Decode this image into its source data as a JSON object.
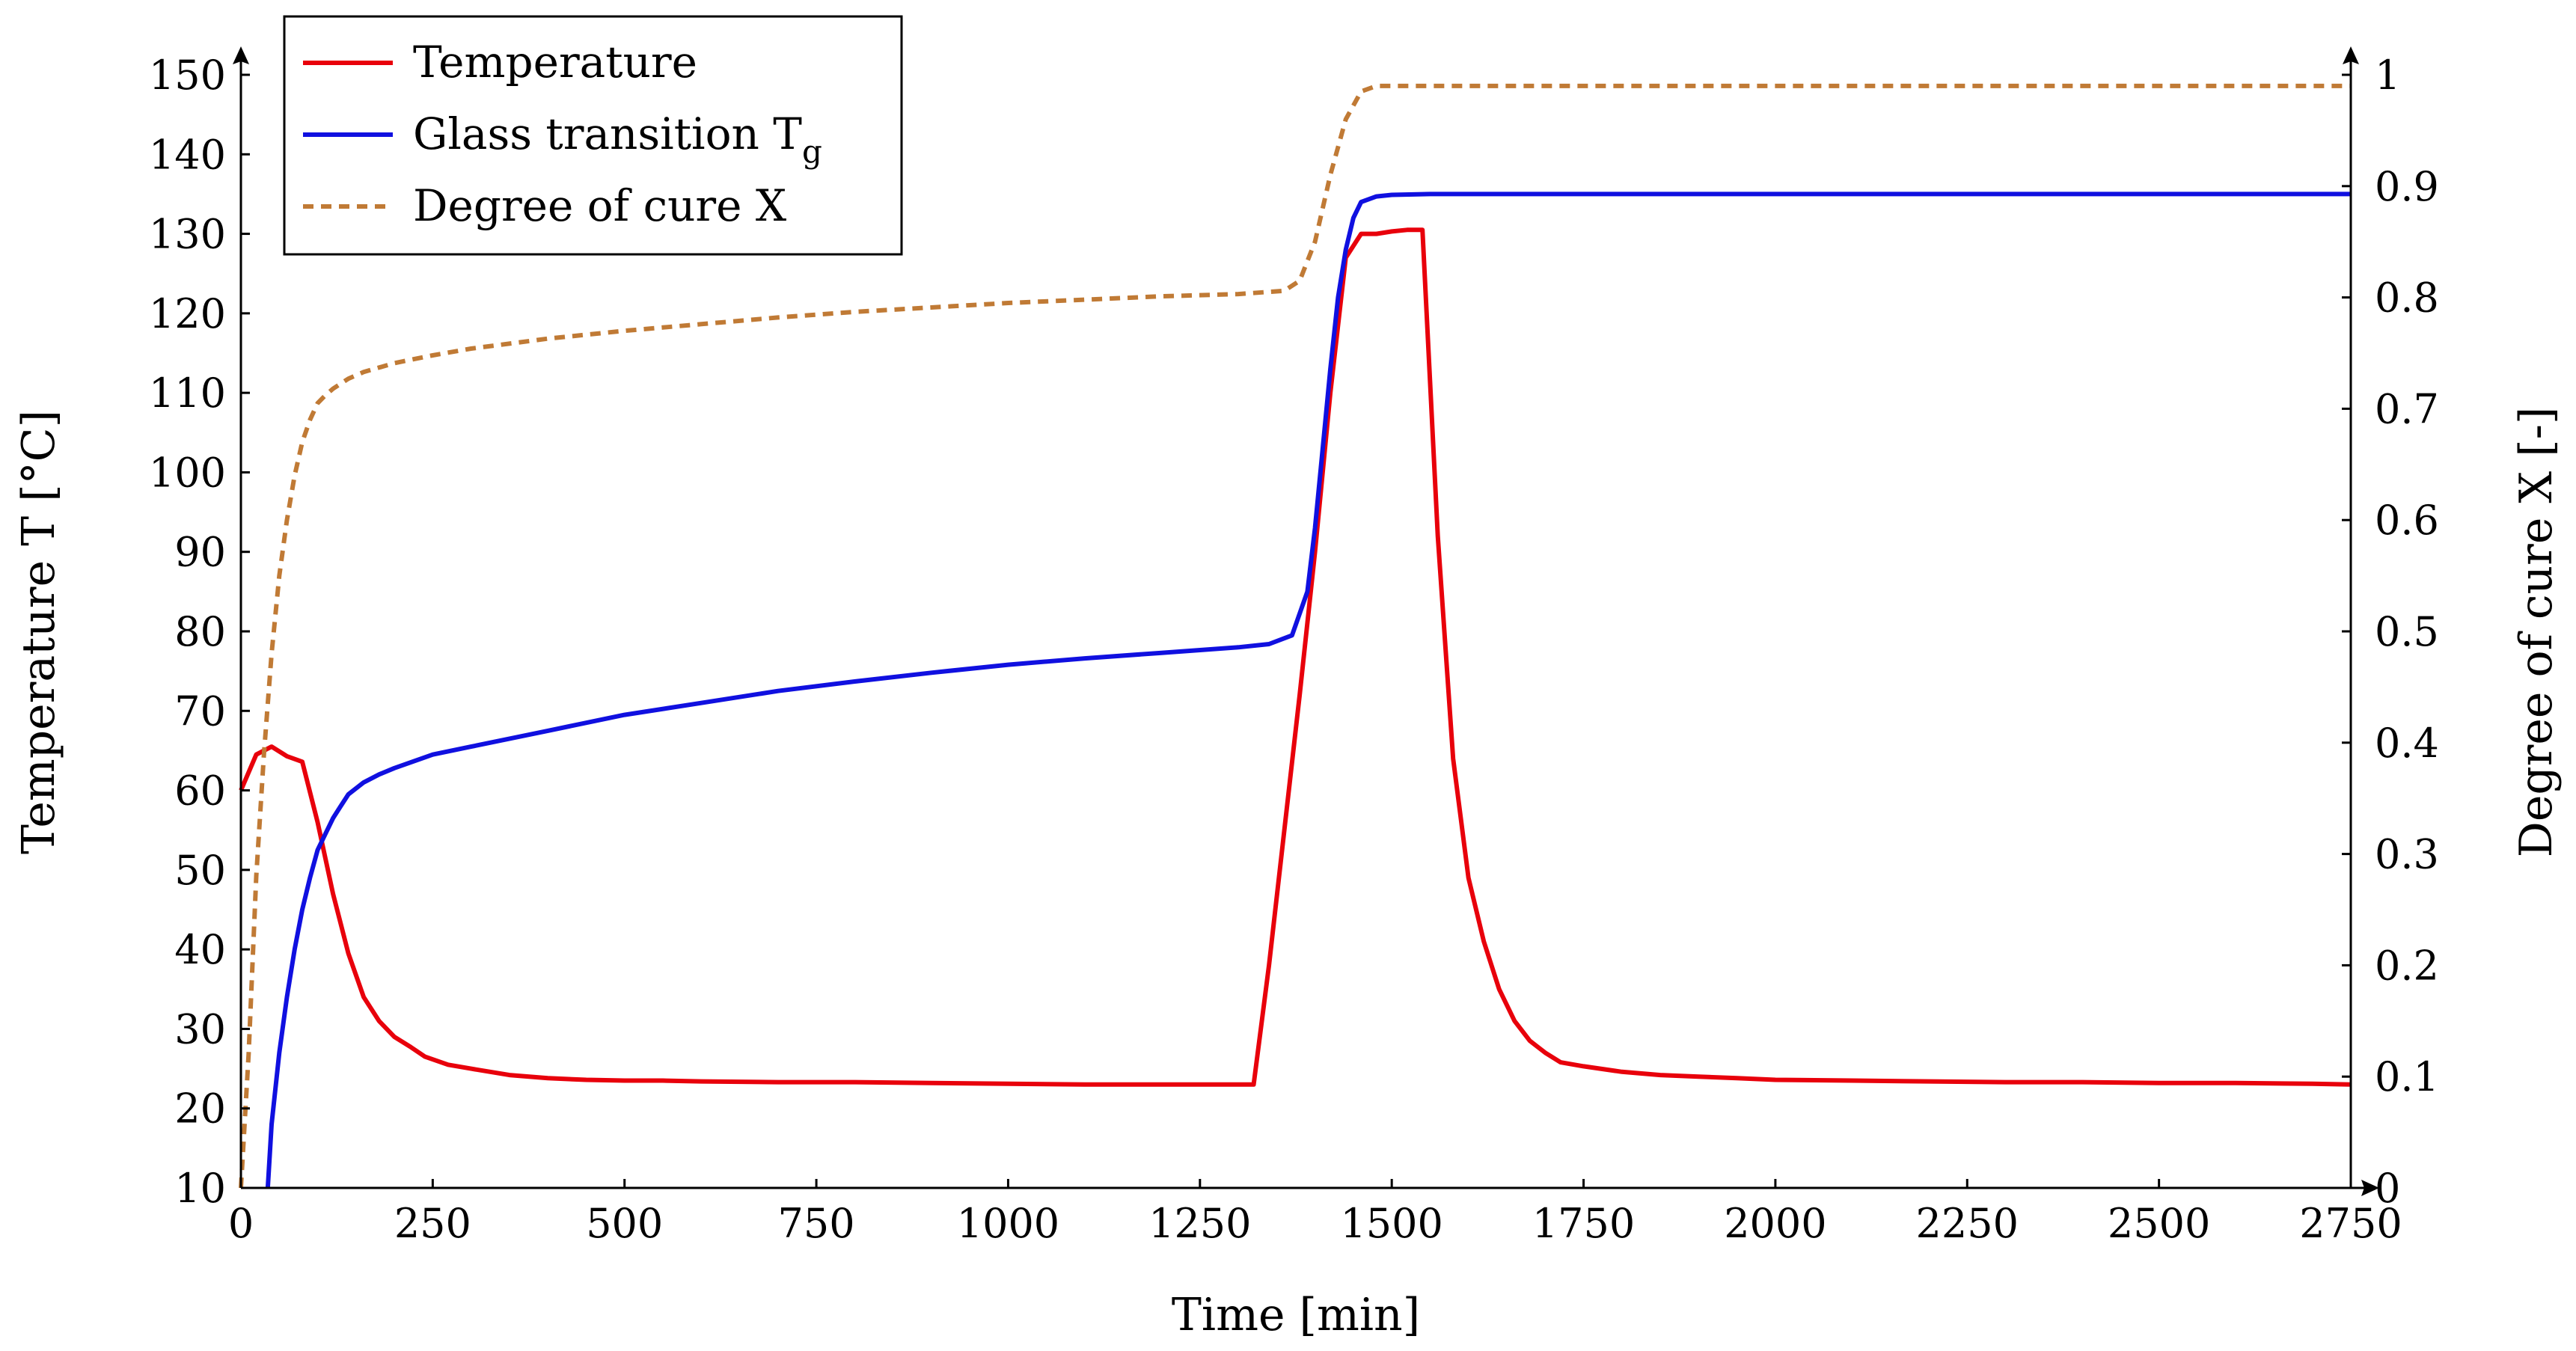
{
  "chart_data": {
    "type": "line",
    "xlabel": "Time [min]",
    "ylabel": "Temperature T [°C]",
    "y2label": "Degree of cure X [-]",
    "xlim": [
      0,
      2750
    ],
    "ylim": [
      10,
      150
    ],
    "y2lim": [
      0,
      1
    ],
    "xticks": [
      "0",
      "250",
      "500",
      "750",
      "1000",
      "1250",
      "1500",
      "1750",
      "2000",
      "2250",
      "2500",
      "2750"
    ],
    "yticks": [
      "10",
      "20",
      "30",
      "40",
      "50",
      "60",
      "70",
      "80",
      "90",
      "100",
      "110",
      "120",
      "130",
      "140",
      "150"
    ],
    "y2ticks": [
      "0",
      "0.1",
      "0.2",
      "0.3",
      "0.4",
      "0.5",
      "0.6",
      "0.7",
      "0.8",
      "0.9",
      "1"
    ],
    "legend": {
      "position": "top-left",
      "entries": [
        {
          "label": "Temperature",
          "series": "temperature"
        },
        {
          "label": "Glass transition T",
          "subscript": "g",
          "series": "tg"
        },
        {
          "label": "Degree of cure X",
          "series": "cure"
        }
      ]
    },
    "series": [
      {
        "name": "Temperature",
        "key": "temperature",
        "axis": "left",
        "color": "#e8000b",
        "dash": "",
        "x": [
          0,
          20,
          40,
          60,
          80,
          100,
          120,
          140,
          160,
          180,
          200,
          220,
          240,
          270,
          300,
          350,
          400,
          450,
          500,
          550,
          600,
          700,
          800,
          900,
          1000,
          1100,
          1200,
          1280,
          1320,
          1340,
          1360,
          1380,
          1400,
          1420,
          1440,
          1460,
          1480,
          1500,
          1520,
          1540,
          1560,
          1580,
          1600,
          1620,
          1640,
          1660,
          1680,
          1700,
          1720,
          1750,
          1800,
          1850,
          1900,
          1950,
          2000,
          2100,
          2200,
          2300,
          2400,
          2500,
          2600,
          2700,
          2750
        ],
        "values": [
          60,
          64.5,
          65.5,
          64.3,
          63.6,
          56,
          47,
          39.5,
          34,
          31,
          29,
          27.8,
          26.5,
          25.5,
          25,
          24.2,
          23.8,
          23.6,
          23.5,
          23.5,
          23.4,
          23.3,
          23.3,
          23.2,
          23.1,
          23.0,
          23.0,
          23.0,
          23.0,
          38,
          55,
          72,
          90,
          110,
          127,
          130,
          130,
          130.3,
          130.5,
          130.5,
          92,
          64,
          49,
          41,
          35,
          31,
          28.5,
          27,
          25.8,
          25.3,
          24.6,
          24.2,
          24.0,
          23.8,
          23.6,
          23.5,
          23.4,
          23.3,
          23.3,
          23.2,
          23.2,
          23.1,
          23.0
        ]
      },
      {
        "name": "Glass transition Tg",
        "key": "tg",
        "axis": "left",
        "color": "#1010e0",
        "dash": "",
        "x": [
          35,
          40,
          50,
          60,
          70,
          80,
          90,
          100,
          110,
          120,
          130,
          140,
          160,
          180,
          200,
          250,
          300,
          400,
          500,
          600,
          700,
          800,
          900,
          1000,
          1100,
          1200,
          1300,
          1340,
          1370,
          1390,
          1400,
          1410,
          1420,
          1430,
          1440,
          1450,
          1460,
          1480,
          1500,
          1550,
          1700,
          2000,
          2500,
          2750
        ],
        "values": [
          10,
          18,
          27,
          34,
          40,
          45,
          49,
          52.5,
          54.5,
          56.5,
          58,
          59.5,
          61,
          62,
          62.8,
          64.5,
          65.5,
          67.5,
          69.5,
          71,
          72.5,
          73.7,
          74.8,
          75.8,
          76.6,
          77.3,
          78.0,
          78.4,
          79.5,
          85,
          93,
          103,
          113,
          122,
          128,
          132,
          134,
          134.7,
          134.9,
          135.0,
          135.0,
          135.0,
          135.0,
          135.0
        ]
      },
      {
        "name": "Degree of cure X",
        "key": "cure",
        "axis": "right",
        "color": "#c07a35",
        "dash": "14 10",
        "x": [
          0,
          10,
          20,
          30,
          40,
          50,
          60,
          70,
          80,
          90,
          100,
          110,
          120,
          140,
          160,
          200,
          250,
          300,
          400,
          500,
          600,
          700,
          800,
          900,
          1000,
          1100,
          1200,
          1300,
          1360,
          1380,
          1400,
          1420,
          1440,
          1460,
          1480,
          1500,
          1600,
          2000,
          2500,
          2750
        ],
        "values": [
          0,
          0.12,
          0.28,
          0.39,
          0.48,
          0.55,
          0.6,
          0.64,
          0.67,
          0.69,
          0.705,
          0.712,
          0.718,
          0.727,
          0.733,
          0.741,
          0.748,
          0.754,
          0.763,
          0.77,
          0.776,
          0.782,
          0.787,
          0.791,
          0.795,
          0.798,
          0.801,
          0.803,
          0.806,
          0.815,
          0.85,
          0.91,
          0.96,
          0.985,
          0.99,
          0.99,
          0.99,
          0.99,
          0.99,
          0.99
        ]
      }
    ]
  }
}
